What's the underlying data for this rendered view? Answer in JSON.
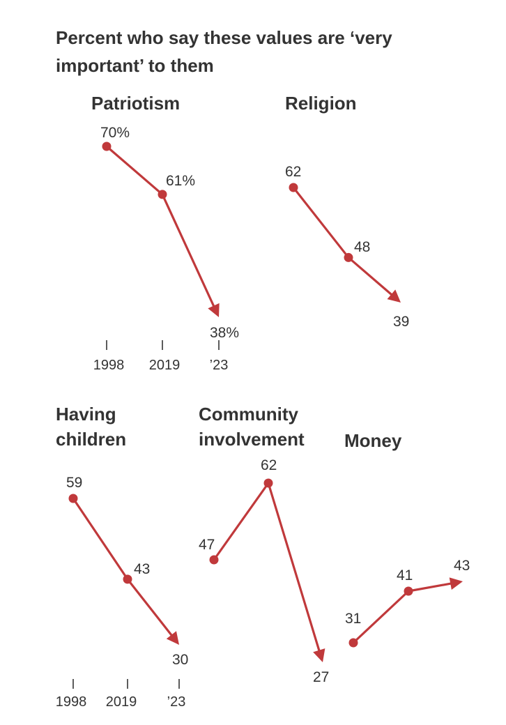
{
  "title": "Percent who say these values are ‘very important’ to them",
  "colors": {
    "line": "#c0393b",
    "text": "#333333",
    "tick": "#333333"
  },
  "chart_data": {
    "type": "line",
    "title": "Percent who say these values are ‘very important’ to them",
    "x": [
      "1998",
      "2019",
      "2023"
    ],
    "tick_labels": [
      "1998",
      "2019",
      "’23"
    ],
    "panels": [
      {
        "name": "Patriotism",
        "title_lines": [
          "Patriotism"
        ],
        "values": [
          70,
          61,
          38
        ],
        "labels": [
          "70%",
          "61%",
          "38%"
        ],
        "show_x_axis": true
      },
      {
        "name": "Religion",
        "title_lines": [
          "Religion"
        ],
        "values": [
          62,
          48,
          39
        ],
        "labels": [
          "62",
          "48",
          "39"
        ],
        "show_x_axis": false
      },
      {
        "name": "Having children",
        "title_lines": [
          "Having",
          "children"
        ],
        "values": [
          59,
          43,
          30
        ],
        "labels": [
          "59",
          "43",
          "30"
        ],
        "show_x_axis": true
      },
      {
        "name": "Community involvement",
        "title_lines": [
          "Community",
          "involvement"
        ],
        "values": [
          47,
          62,
          27
        ],
        "labels": [
          "47",
          "62",
          "27"
        ],
        "show_x_axis": false
      },
      {
        "name": "Money",
        "title_lines": [
          "Money"
        ],
        "values": [
          31,
          41,
          43
        ],
        "labels": [
          "31",
          "41",
          "43"
        ],
        "show_x_axis": false
      }
    ]
  }
}
